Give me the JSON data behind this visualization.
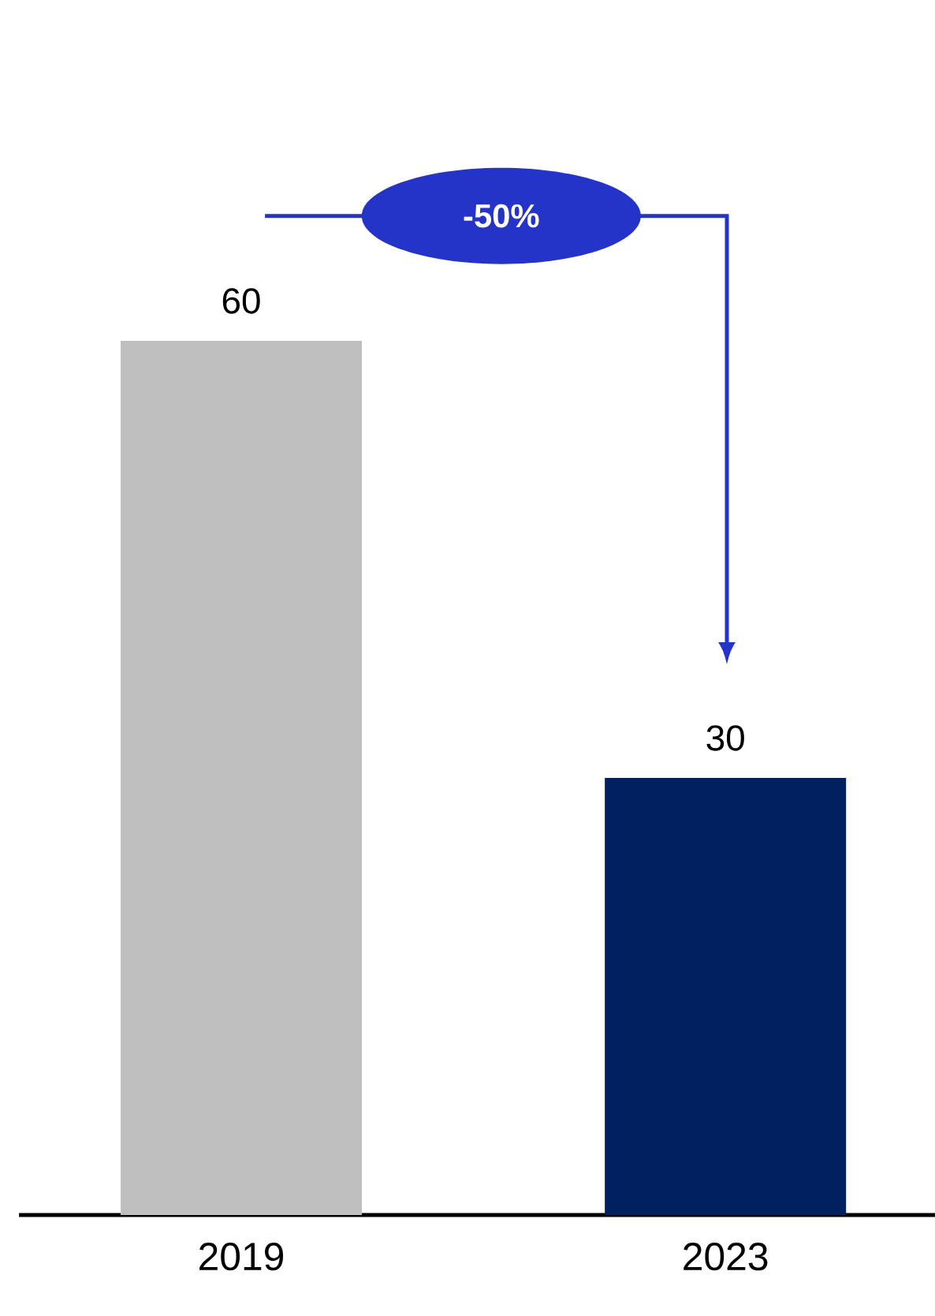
{
  "chart_data": {
    "type": "bar",
    "categories": [
      "2019",
      "2023"
    ],
    "values": [
      60,
      30
    ],
    "colors": [
      "#bfbfbf",
      "#002060"
    ],
    "data_labels": true,
    "annotations": [
      "-50%"
    ]
  }
}
